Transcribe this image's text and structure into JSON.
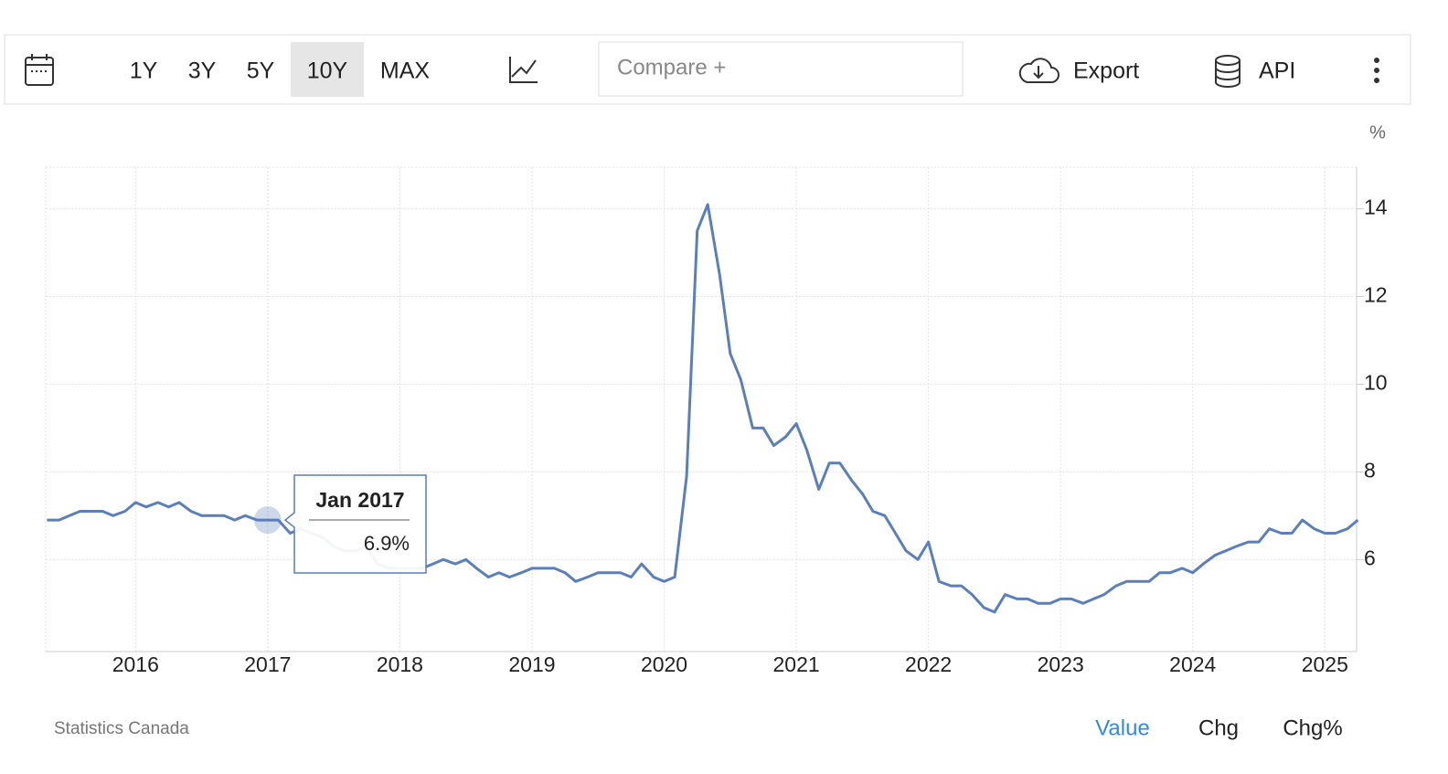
{
  "toolbar": {
    "ranges": [
      "1Y",
      "3Y",
      "5Y",
      "10Y",
      "MAX"
    ],
    "compare": "Compare +",
    "export": "Export",
    "api": "API"
  },
  "footer": {
    "source": "Statistics Canada",
    "modes": [
      "Value",
      "Chg",
      "Chg%"
    ]
  },
  "chart_data": {
    "type": "line",
    "unit": "%",
    "x": [
      2015.33,
      2015.42,
      2015.5,
      2015.58,
      2015.67,
      2015.75,
      2015.83,
      2015.92,
      2016,
      2016.08,
      2016.17,
      2016.25,
      2016.33,
      2016.42,
      2016.5,
      2016.58,
      2016.67,
      2016.75,
      2016.83,
      2016.92,
      2017,
      2017.08,
      2017.17,
      2017.25,
      2017.33,
      2017.42,
      2017.5,
      2017.58,
      2017.67,
      2017.75,
      2017.83,
      2017.92,
      2018,
      2018.08,
      2018.17,
      2018.25,
      2018.33,
      2018.42,
      2018.5,
      2018.58,
      2018.67,
      2018.75,
      2018.83,
      2018.92,
      2019,
      2019.08,
      2019.17,
      2019.25,
      2019.33,
      2019.42,
      2019.5,
      2019.58,
      2019.67,
      2019.75,
      2019.83,
      2019.92,
      2020,
      2020.08,
      2020.17,
      2020.25,
      2020.33,
      2020.42,
      2020.5,
      2020.58,
      2020.67,
      2020.75,
      2020.83,
      2020.92,
      2021,
      2021.08,
      2021.17,
      2021.25,
      2021.33,
      2021.42,
      2021.5,
      2021.58,
      2021.67,
      2021.75,
      2021.83,
      2021.92,
      2022,
      2022.08,
      2022.17,
      2022.25,
      2022.33,
      2022.42,
      2022.5,
      2022.58,
      2022.67,
      2022.75,
      2022.83,
      2022.92,
      2023,
      2023.08,
      2023.17,
      2023.25,
      2023.33,
      2023.42,
      2023.5,
      2023.58,
      2023.67,
      2023.75,
      2023.83,
      2023.92,
      2024,
      2024.08,
      2024.17,
      2024.25,
      2024.33,
      2024.42,
      2024.5,
      2024.58,
      2024.67,
      2024.75,
      2024.83,
      2024.92,
      2025,
      2025.08,
      2025.17,
      2025.25
    ],
    "series": [
      {
        "color": "#5b7fbb",
        "values": [
          6.9,
          6.9,
          7.0,
          7.1,
          7.1,
          7.1,
          7.0,
          7.1,
          7.3,
          7.2,
          7.3,
          7.2,
          7.3,
          7.1,
          7.0,
          7.0,
          7.0,
          6.9,
          7.0,
          6.9,
          6.9,
          6.9,
          6.6,
          6.7,
          6.6,
          6.5,
          6.3,
          6.2,
          6.2,
          6.3,
          5.9,
          5.8,
          5.8,
          5.8,
          5.8,
          5.9,
          6.0,
          5.9,
          6.0,
          5.8,
          5.6,
          5.7,
          5.6,
          5.7,
          5.8,
          5.8,
          5.8,
          5.7,
          5.5,
          5.6,
          5.7,
          5.7,
          5.7,
          5.6,
          5.9,
          5.6,
          5.5,
          5.6,
          7.9,
          13.5,
          14.1,
          12.5,
          10.7,
          10.1,
          9.0,
          9.0,
          8.6,
          8.8,
          9.1,
          8.5,
          7.6,
          8.2,
          8.2,
          7.8,
          7.5,
          7.1,
          7.0,
          6.6,
          6.2,
          6.0,
          6.4,
          5.5,
          5.4,
          5.4,
          5.2,
          4.9,
          4.8,
          5.2,
          5.1,
          5.1,
          5.0,
          5.0,
          5.1,
          5.1,
          5.0,
          5.1,
          5.2,
          5.4,
          5.5,
          5.5,
          5.5,
          5.7,
          5.7,
          5.8,
          5.7,
          5.9,
          6.1,
          6.2,
          6.3,
          6.4,
          6.4,
          6.7,
          6.6,
          6.6,
          6.9,
          6.7,
          6.6,
          6.6,
          6.7,
          6.9
        ]
      }
    ],
    "xlim": [
      2015.32,
      2025.24
    ],
    "xticks": [
      2016,
      2017,
      2018,
      2019,
      2020,
      2021,
      2022,
      2023,
      2024,
      2025
    ],
    "ylim": [
      3.9,
      14.95
    ],
    "yticks": [
      6,
      8,
      10,
      12,
      14
    ],
    "grid": true,
    "tooltip": {
      "title": "Jan 2017",
      "text": "6.9%",
      "index": 20
    }
  }
}
